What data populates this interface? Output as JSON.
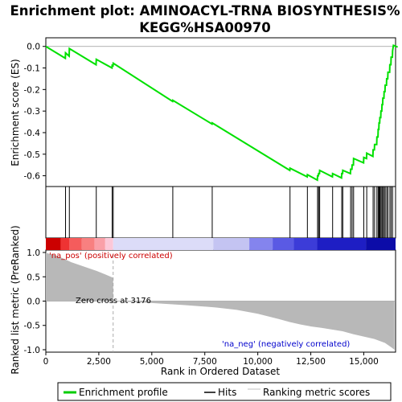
{
  "chart_data": {
    "type": "line",
    "title_line1": "Enrichment plot: AMINOACYL-TRNA BIOSYNTHESIS%",
    "title_line2": "KEGG%HSA00970",
    "xlabel": "Rank in Ordered Dataset",
    "ylabel_top": "Enrichment score (ES)",
    "ylabel_bottom": "Ranked list metric (PreRanked)",
    "xlim": [
      0,
      16500
    ],
    "es_ylim": [
      -0.65,
      0.04
    ],
    "metric_ylim": [
      -1.05,
      1.05
    ],
    "x_ticks": [
      0,
      2500,
      5000,
      7500,
      10000,
      12500,
      15000
    ],
    "x_tick_labels": [
      "0",
      "2,500",
      "5,000",
      "7,500",
      "10,000",
      "12,500",
      "15,000"
    ],
    "es_ticks": [
      0.0,
      -0.1,
      -0.2,
      -0.3,
      -0.4,
      -0.5,
      -0.6
    ],
    "es_tick_labels": [
      "0.0",
      "-0.1",
      "-0.2",
      "-0.3",
      "-0.4",
      "-0.5",
      "-0.6"
    ],
    "metric_ticks": [
      1.0,
      0.5,
      0.0,
      -0.5,
      -1.0
    ],
    "metric_tick_labels": [
      "1.0",
      "0.5",
      "0.0",
      "-0.5",
      "-1.0"
    ],
    "hits": [
      930,
      1110,
      2380,
      3130,
      3180,
      5990,
      7850,
      11520,
      12340,
      12820,
      12870,
      12920,
      13530,
      13960,
      14010,
      14380,
      14450,
      14520,
      15000,
      15140,
      15440,
      15510,
      15620,
      15680,
      15720,
      15760,
      15810,
      15860,
      15900,
      15960,
      16010,
      16080,
      16140,
      16230,
      16290,
      16360
    ],
    "es_profile": [
      [
        0,
        0.0
      ],
      [
        920,
        -0.055
      ],
      [
        930,
        -0.03
      ],
      [
        1100,
        -0.045
      ],
      [
        1110,
        -0.01
      ],
      [
        2370,
        -0.085
      ],
      [
        2380,
        -0.06
      ],
      [
        3120,
        -0.1
      ],
      [
        3130,
        -0.088
      ],
      [
        3170,
        -0.09
      ],
      [
        3180,
        -0.078
      ],
      [
        5980,
        -0.255
      ],
      [
        5990,
        -0.25
      ],
      [
        7840,
        -0.36
      ],
      [
        7850,
        -0.355
      ],
      [
        11510,
        -0.575
      ],
      [
        11520,
        -0.565
      ],
      [
        12330,
        -0.605
      ],
      [
        12340,
        -0.595
      ],
      [
        12810,
        -0.62
      ],
      [
        12820,
        -0.6
      ],
      [
        12860,
        -0.6
      ],
      [
        12870,
        -0.59
      ],
      [
        12910,
        -0.59
      ],
      [
        12920,
        -0.575
      ],
      [
        13520,
        -0.605
      ],
      [
        13530,
        -0.59
      ],
      [
        13950,
        -0.61
      ],
      [
        13960,
        -0.59
      ],
      [
        14000,
        -0.59
      ],
      [
        14010,
        -0.575
      ],
      [
        14370,
        -0.59
      ],
      [
        14380,
        -0.57
      ],
      [
        14440,
        -0.57
      ],
      [
        14450,
        -0.55
      ],
      [
        14510,
        -0.55
      ],
      [
        14520,
        -0.52
      ],
      [
        14990,
        -0.54
      ],
      [
        15000,
        -0.515
      ],
      [
        15130,
        -0.52
      ],
      [
        15140,
        -0.495
      ],
      [
        15430,
        -0.51
      ],
      [
        15440,
        -0.48
      ],
      [
        15500,
        -0.48
      ],
      [
        15510,
        -0.455
      ],
      [
        15610,
        -0.455
      ],
      [
        15620,
        -0.42
      ],
      [
        15670,
        -0.42
      ],
      [
        15680,
        -0.385
      ],
      [
        15710,
        -0.385
      ],
      [
        15720,
        -0.355
      ],
      [
        15750,
        -0.355
      ],
      [
        15760,
        -0.33
      ],
      [
        15800,
        -0.33
      ],
      [
        15810,
        -0.3
      ],
      [
        15850,
        -0.3
      ],
      [
        15860,
        -0.27
      ],
      [
        15890,
        -0.27
      ],
      [
        15900,
        -0.24
      ],
      [
        15950,
        -0.24
      ],
      [
        15960,
        -0.21
      ],
      [
        16000,
        -0.21
      ],
      [
        16010,
        -0.18
      ],
      [
        16070,
        -0.18
      ],
      [
        16080,
        -0.15
      ],
      [
        16130,
        -0.15
      ],
      [
        16140,
        -0.12
      ],
      [
        16220,
        -0.12
      ],
      [
        16230,
        -0.085
      ],
      [
        16280,
        -0.085
      ],
      [
        16290,
        -0.05
      ],
      [
        16350,
        -0.05
      ],
      [
        16360,
        -0.02
      ],
      [
        16400,
        0.005
      ],
      [
        16600,
        -0.003
      ]
    ],
    "metric_profile": [
      [
        0,
        1.0
      ],
      [
        100,
        0.98
      ],
      [
        400,
        0.95
      ],
      [
        800,
        0.88
      ],
      [
        1200,
        0.8
      ],
      [
        1600,
        0.74
      ],
      [
        2000,
        0.68
      ],
      [
        2400,
        0.62
      ],
      [
        2800,
        0.55
      ],
      [
        3176,
        0.48
      ],
      [
        3177,
        0.0
      ],
      [
        5000,
        -0.04
      ],
      [
        6500,
        -0.08
      ],
      [
        8000,
        -0.13
      ],
      [
        9000,
        -0.18
      ],
      [
        10000,
        -0.26
      ],
      [
        11000,
        -0.37
      ],
      [
        11500,
        -0.43
      ],
      [
        12000,
        -0.48
      ],
      [
        12500,
        -0.52
      ],
      [
        13000,
        -0.55
      ],
      [
        14000,
        -0.62
      ],
      [
        14500,
        -0.68
      ],
      [
        15000,
        -0.73
      ],
      [
        15500,
        -0.78
      ],
      [
        16000,
        -0.86
      ],
      [
        16300,
        -0.95
      ],
      [
        16450,
        -1.0
      ]
    ],
    "zero_cross_label": "Zero cross at 3176",
    "pos_label": "'na_pos' (positively correlated)",
    "neg_label": "'na_neg' (negatively correlated)",
    "legend": [
      {
        "name": "Enrichment profile",
        "color": "#00cc00"
      },
      {
        "name": "Hits",
        "color": "#000000"
      },
      {
        "name": "Ranking metric scores",
        "color": "#c0c0c0"
      }
    ],
    "colors": {
      "es_line": "#00e000",
      "metric_fill": "#b8b8b8",
      "pos_label": "#cc0000",
      "neg_label": "#0000cc"
    },
    "heat_strip": [
      {
        "from": 0,
        "to": 700,
        "color": "#cc0000"
      },
      {
        "from": 700,
        "to": 1100,
        "color": "#ee3333"
      },
      {
        "from": 1100,
        "to": 1700,
        "color": "#f55c5c"
      },
      {
        "from": 1700,
        "to": 2300,
        "color": "#f88080"
      },
      {
        "from": 2300,
        "to": 2800,
        "color": "#faa0a8"
      },
      {
        "from": 2800,
        "to": 3176,
        "color": "#fcc8d8"
      },
      {
        "from": 3176,
        "to": 7900,
        "color": "#dcdcf8"
      },
      {
        "from": 7900,
        "to": 9600,
        "color": "#c4c4f2"
      },
      {
        "from": 9600,
        "to": 10700,
        "color": "#8484ee"
      },
      {
        "from": 10700,
        "to": 11700,
        "color": "#5a5ae4"
      },
      {
        "from": 11700,
        "to": 12800,
        "color": "#3c3cd8"
      },
      {
        "from": 12800,
        "to": 15100,
        "color": "#1e1ec4"
      },
      {
        "from": 15100,
        "to": 16500,
        "color": "#0c0ca8"
      }
    ]
  }
}
